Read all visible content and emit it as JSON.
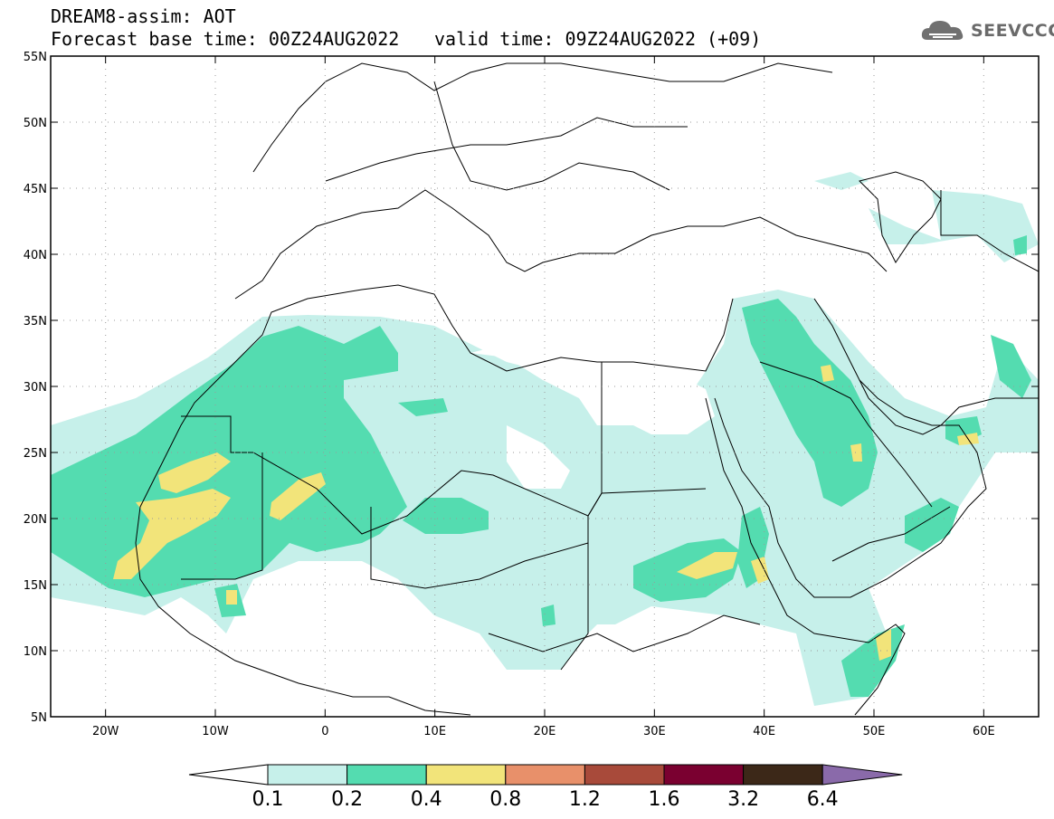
{
  "header": {
    "title": "DREAM8-assim: AOT",
    "base_time": "Forecast base time: 00Z24AUG2022",
    "valid_time": "valid time: 09Z24AUG2022 (+09)"
  },
  "logo": {
    "text": "SEEVCCC",
    "icon": "cloud-icon"
  },
  "map_data": {
    "type": "contour-map",
    "variable": "AOT",
    "lon_range": [
      -25,
      65
    ],
    "lat_range": [
      5,
      55
    ],
    "lon_ticks": [
      "20W",
      "10W",
      "0",
      "10E",
      "20E",
      "30E",
      "40E",
      "50E",
      "60E"
    ],
    "lat_ticks": [
      "5N",
      "10N",
      "15N",
      "20N",
      "25N",
      "30N",
      "35N",
      "40N",
      "45N",
      "50N",
      "55N"
    ],
    "colorbar": {
      "levels": [
        "0.1",
        "0.2",
        "0.4",
        "0.8",
        "1.2",
        "1.6",
        "3.2",
        "6.4"
      ],
      "colors": [
        "#c6f0ea",
        "#54dcb0",
        "#f2e47a",
        "#e8906a",
        "#a84a3a",
        "#7a0030",
        "#3c2818",
        "#8a6aaa"
      ]
    }
  }
}
